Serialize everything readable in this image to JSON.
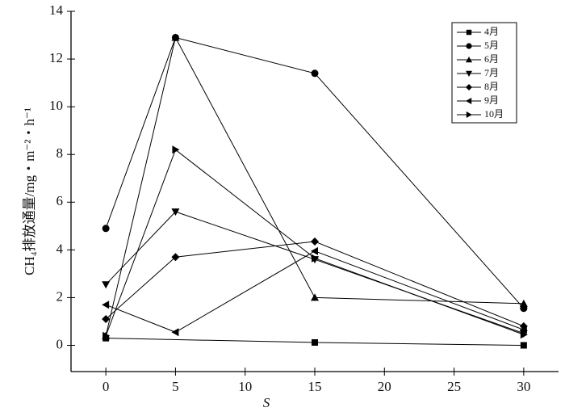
{
  "chart_data": {
    "type": "line",
    "xlabel": "S",
    "ylabel": "CH₄排放通量/mg・m⁻²・h⁻¹",
    "xlim": [
      -2.5,
      32.5
    ],
    "xticks": [
      0,
      5,
      10,
      15,
      20,
      25,
      30
    ],
    "ylim": [
      -1.1,
      14
    ],
    "yticks": [
      0,
      2,
      4,
      6,
      8,
      10,
      12,
      14
    ],
    "x": [
      0,
      5,
      15,
      30
    ],
    "series": [
      {
        "name": "4月",
        "color": "#000000",
        "marker": "square",
        "x": [
          0,
          15,
          30
        ],
        "values": [
          0.3,
          0.12,
          0.0
        ]
      },
      {
        "name": "5月",
        "color": "#000000",
        "marker": "circle",
        "values": [
          4.9,
          12.9,
          11.4,
          1.55
        ]
      },
      {
        "name": "6月",
        "color": "#000000",
        "marker": "triangle-up",
        "values": [
          0.4,
          12.9,
          2.0,
          1.75
        ]
      },
      {
        "name": "7月",
        "color": "#000000",
        "marker": "triangle-down",
        "values": [
          2.55,
          5.6,
          3.6,
          0.5
        ]
      },
      {
        "name": "8月",
        "color": "#000000",
        "marker": "diamond",
        "values": [
          1.1,
          3.7,
          4.35,
          0.8
        ]
      },
      {
        "name": "9月",
        "color": "#000000",
        "marker": "triangle-left",
        "values": [
          1.7,
          0.55,
          3.95,
          0.65
        ]
      },
      {
        "name": "10月",
        "color": "#000000",
        "marker": "triangle-right",
        "values": [
          0.4,
          8.2,
          3.65,
          0.45
        ]
      }
    ]
  }
}
